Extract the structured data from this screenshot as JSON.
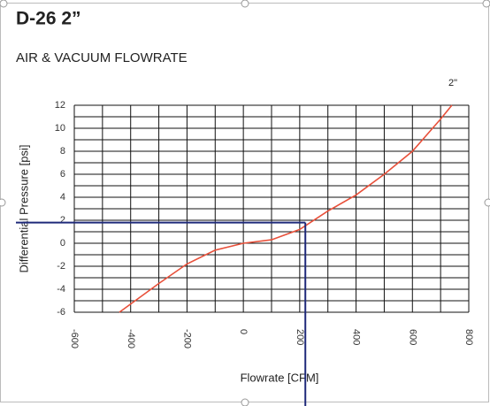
{
  "chart_data": {
    "type": "line",
    "title": "D-26 2”",
    "subtitle": "AIR & VACUUM FLOWRATE",
    "x_label": "Flowrate [CFM]",
    "y_label": "Differential Pressure [psi]",
    "series": [
      {
        "name": "2\"",
        "color": "#e8503a",
        "x": [
          -440,
          -300,
          -200,
          -100,
          0,
          100,
          200,
          300,
          400,
          500,
          600,
          700,
          740
        ],
        "values": [
          -6,
          -3.5,
          -1.8,
          -0.6,
          0,
          0.3,
          1.2,
          2.8,
          4.2,
          6,
          8,
          10.8,
          12
        ]
      }
    ],
    "crosshair": {
      "x": 220,
      "y": 1.8,
      "color": "#1f2a7a"
    },
    "xlim": [
      -600,
      800
    ],
    "xticks": [
      -600,
      -400,
      -200,
      0,
      200,
      400,
      600,
      800
    ],
    "ylim": [
      -6,
      12
    ],
    "yticks": [
      -6,
      -4,
      -2,
      0,
      2,
      4,
      6,
      8,
      10,
      12
    ],
    "grid": true
  }
}
